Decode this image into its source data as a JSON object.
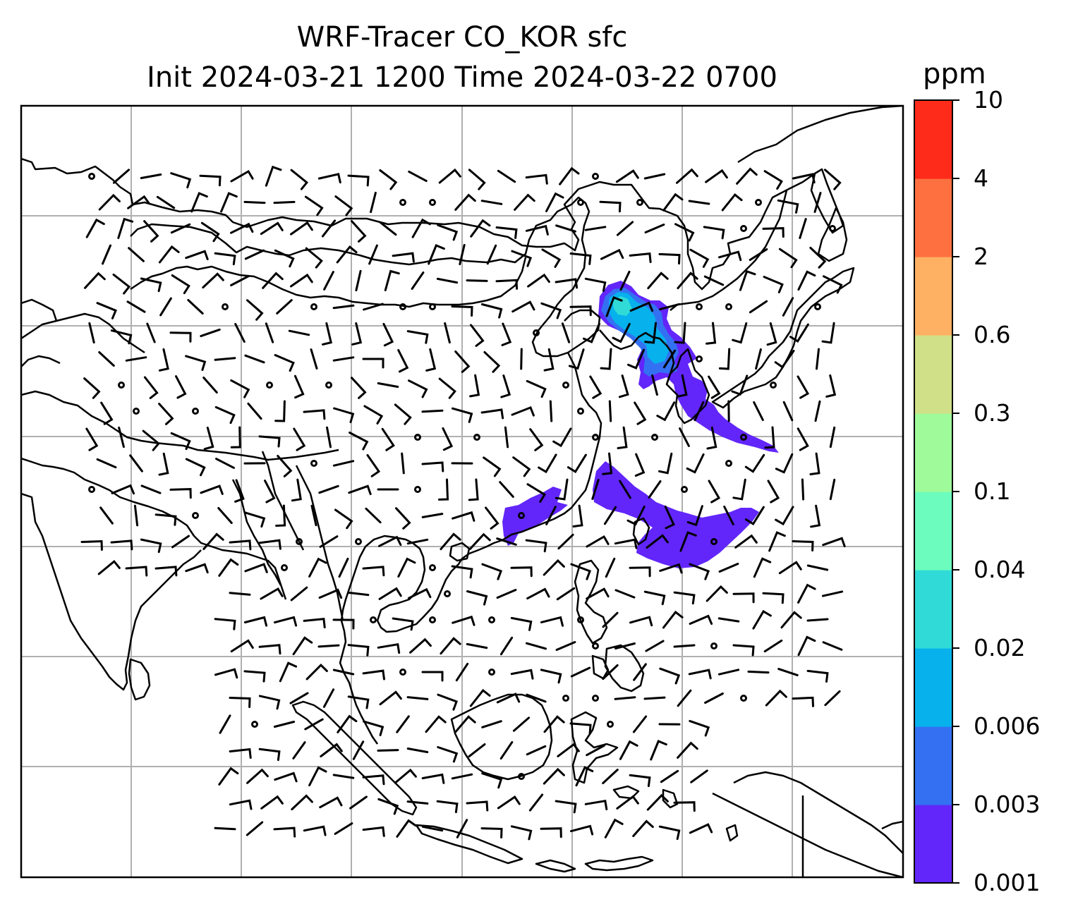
{
  "title": {
    "line1": "WRF-Tracer CO_KOR sfc",
    "line2": "Init 2024-03-21 1200 Time 2024-03-22 0700"
  },
  "colorbar": {
    "unit": "ppm",
    "levels": [
      "0.001",
      "0.003",
      "0.006",
      "0.02",
      "0.04",
      "0.1",
      "0.3",
      "0.6",
      "2",
      "4",
      "10"
    ],
    "colors": [
      "#6226fa",
      "#3371f2",
      "#06b1ec",
      "#30dbd7",
      "#6cfcbd",
      "#9ffb9a",
      "#d0e088",
      "#feb063",
      "#fe7040",
      "#fe2a1a"
    ]
  },
  "map": {
    "projection_grid": "on",
    "coastlines": "on",
    "plume_color": "#6226fa",
    "plume_core_color": "#06b1ec"
  }
}
